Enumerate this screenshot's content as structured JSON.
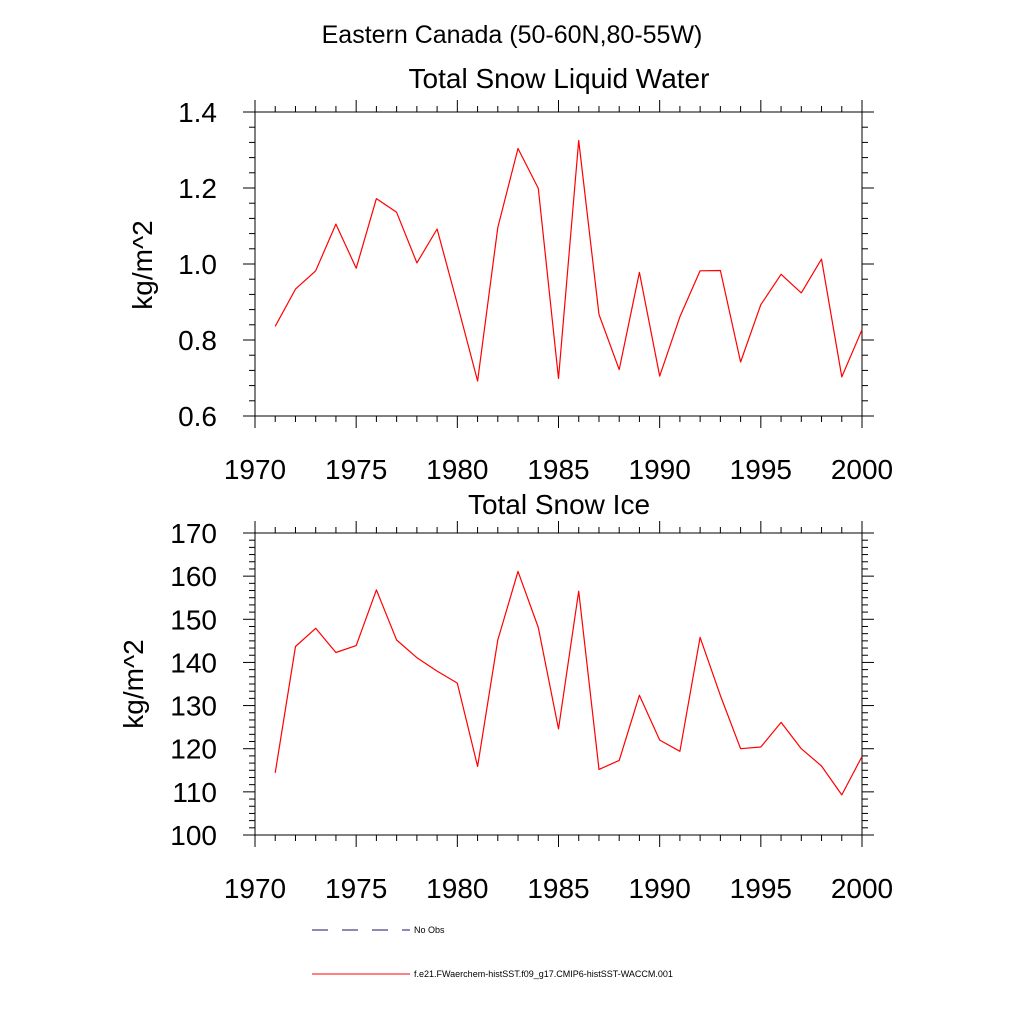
{
  "figure": {
    "title": "Eastern Canada (50-60N,80-55W)"
  },
  "legend": {
    "entries": [
      {
        "label": "No Obs",
        "color": "#1a1a66",
        "style": "dashed"
      },
      {
        "label": "f.e21.FWaerchem-histSST.f09_g17.CMIP6-histSST-WACCM.001",
        "color": "#ff0000",
        "style": "solid"
      }
    ]
  },
  "chart_data": [
    {
      "type": "line",
      "title": "Total Snow Liquid Water",
      "xlabel": "",
      "ylabel": "kg/m^2",
      "xlim": [
        1970,
        2000
      ],
      "ylim": [
        0.6,
        1.4
      ],
      "xticks": [
        "1970",
        "1975",
        "1980",
        "1985",
        "1990",
        "1995",
        "2000"
      ],
      "yticks": [
        "0.6",
        "0.8",
        "1.0",
        "1.2",
        "1.4"
      ],
      "grid": false,
      "series": [
        {
          "name": "f.e21.FWaerchem-histSST.f09_g17.CMIP6-histSST-WACCM.001",
          "color": "#ff0000",
          "x": [
            1971,
            1972,
            1973,
            1974,
            1975,
            1976,
            1977,
            1978,
            1979,
            1980,
            1981,
            1982,
            1983,
            1984,
            1985,
            1986,
            1987,
            1988,
            1989,
            1990,
            1991,
            1992,
            1993,
            1994,
            1995,
            1996,
            1997,
            1998,
            1999,
            2000
          ],
          "y": [
            0.836,
            0.934,
            0.982,
            1.105,
            0.989,
            1.172,
            1.136,
            1.003,
            1.092,
            0.895,
            0.692,
            1.096,
            1.304,
            1.199,
            0.699,
            1.325,
            0.867,
            0.722,
            0.978,
            0.705,
            0.861,
            0.982,
            0.983,
            0.742,
            0.893,
            0.973,
            0.924,
            1.013,
            0.703,
            0.827
          ]
        }
      ]
    },
    {
      "type": "line",
      "title": "Total Snow Ice",
      "xlabel": "",
      "ylabel": "kg/m^2",
      "xlim": [
        1970,
        2000
      ],
      "ylim": [
        100,
        170
      ],
      "xticks": [
        "1970",
        "1975",
        "1980",
        "1985",
        "1990",
        "1995",
        "2000"
      ],
      "yticks": [
        "100",
        "110",
        "120",
        "130",
        "140",
        "150",
        "160",
        "170"
      ],
      "grid": false,
      "series": [
        {
          "name": "f.e21.FWaerchem-histSST.f09_g17.CMIP6-histSST-WACCM.001",
          "color": "#ff0000",
          "x": [
            1971,
            1972,
            1973,
            1974,
            1975,
            1976,
            1977,
            1978,
            1979,
            1980,
            1981,
            1982,
            1983,
            1984,
            1985,
            1986,
            1987,
            1988,
            1989,
            1990,
            1991,
            1992,
            1993,
            1994,
            1995,
            1996,
            1997,
            1998,
            1999,
            2000
          ],
          "y": [
            114.4,
            143.7,
            147.9,
            142.3,
            143.9,
            156.8,
            145.2,
            141.1,
            138.0,
            135.2,
            115.9,
            145.2,
            161.1,
            148.1,
            124.6,
            156.5,
            115.2,
            117.3,
            132.4,
            122.0,
            119.4,
            145.8,
            132.3,
            120.0,
            120.4,
            126.1,
            120.0,
            116.0,
            109.3,
            118.2
          ]
        }
      ]
    }
  ]
}
